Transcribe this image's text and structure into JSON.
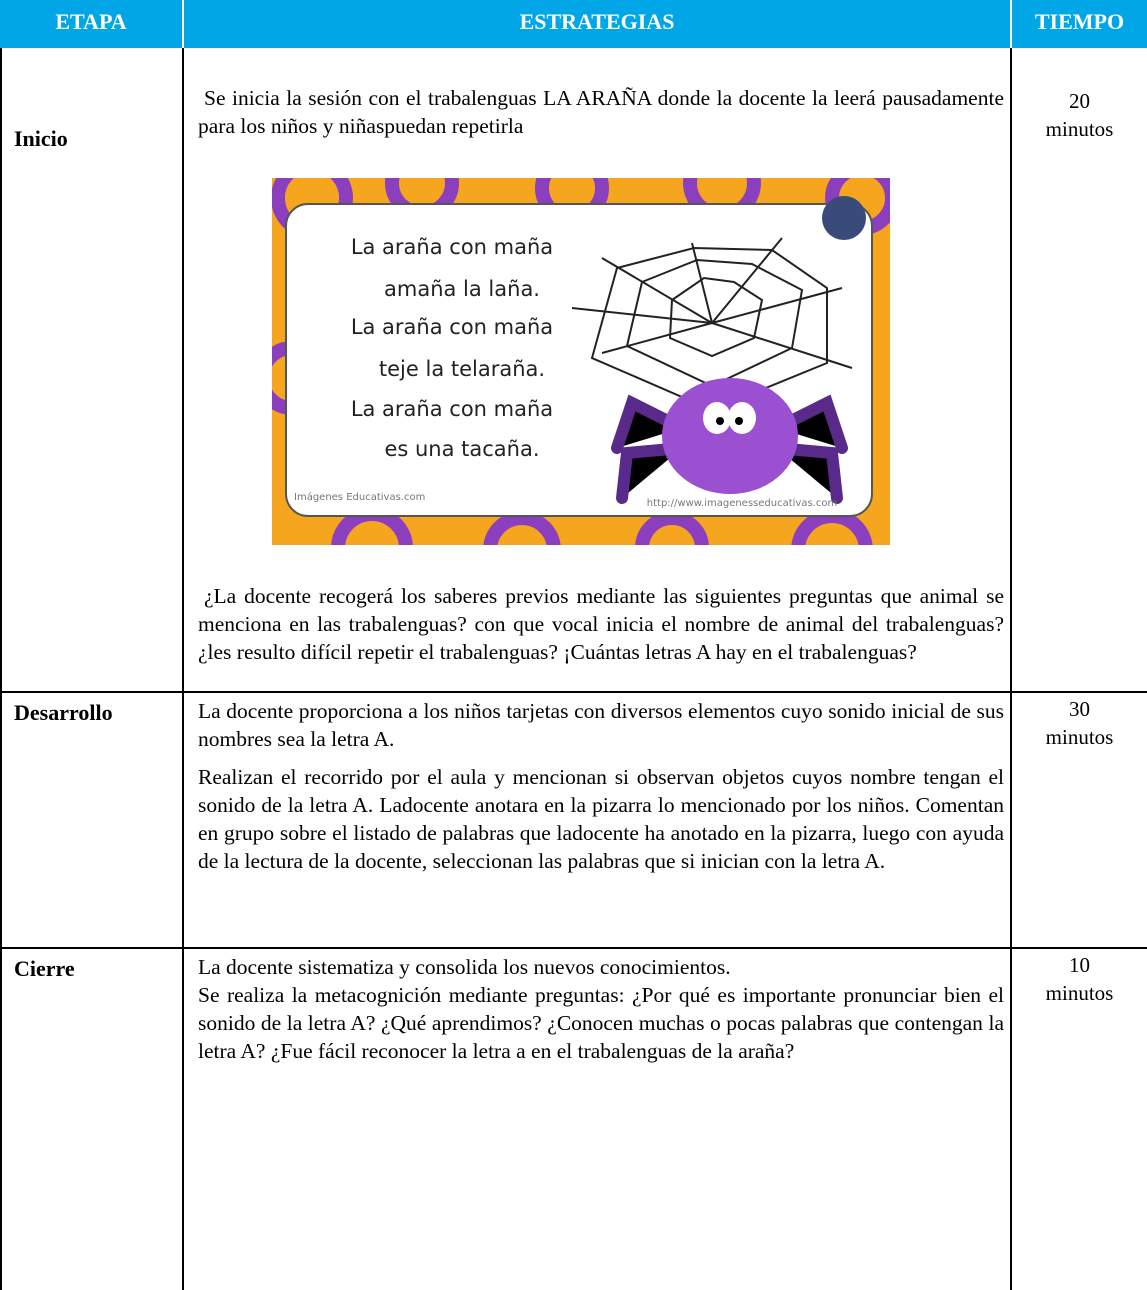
{
  "table": {
    "header": [
      "ETAPA",
      "ESTRATEGIAS",
      "TIEMPO"
    ],
    "rows": [
      {
        "stage": "Inicio",
        "paragraphs": [
          "Se inicia la sesión con el trabalenguas LA ARAÑA donde la docente la leerá pausadamente para los niños y niñaspuedan repetirla",
          "¿La docente recogerá los saberes previos mediante las siguientes preguntas que animal se menciona en las trabalenguas? con que vocal inicia el nombre de animal del trabalenguas? ¿les resulto difícil repetir el trabalenguas? ¡Cuántas letras A hay en el trabalenguas?"
        ],
        "time": [
          "20",
          "minutos"
        ]
      },
      {
        "stage": "Desarrollo",
        "paragraphs": [
          "La docente proporciona a los niños tarjetas con diversos elementos cuyo sonido inicial de sus nombres sea la letra A.",
          "Realizan el recorrido por el aula y mencionan si observan objetos cuyos nombre tengan el sonido de la letra A. Ladocente anotara en la pizarra lo mencionado por los niños. Comentan en grupo sobre el listado de palabras que ladocente ha anotado en la pizarra, luego con ayuda de la lectura de la docente, seleccionan las palabras que si inician con la letra A."
        ],
        "time": [
          "30",
          "minutos"
        ]
      },
      {
        "stage": "Cierre",
        "paragraphs": [
          "La docente sistematiza y consolida los nuevos conocimientos.",
          "Se realiza la metacognición mediante preguntas: ¿Por qué es importante pronunciar bien el sonido de la letra A? ¿Qué aprendimos? ¿Conocen muchas o pocas palabras que contengan la letra A? ¿Fue fácil reconocer la letra a en el trabalenguas de la araña?"
        ],
        "time": [
          "10",
          "minutos"
        ]
      }
    ]
  },
  "image": {
    "lines": [
      "La araña con maña",
      "amaña la laña.",
      "La araña con maña",
      "teje la telaraña.",
      "La araña con maña",
      "es una tacaña."
    ],
    "credit": "Imágenes Educativas.com",
    "url": "http://www.imagenesseducativas.com"
  }
}
